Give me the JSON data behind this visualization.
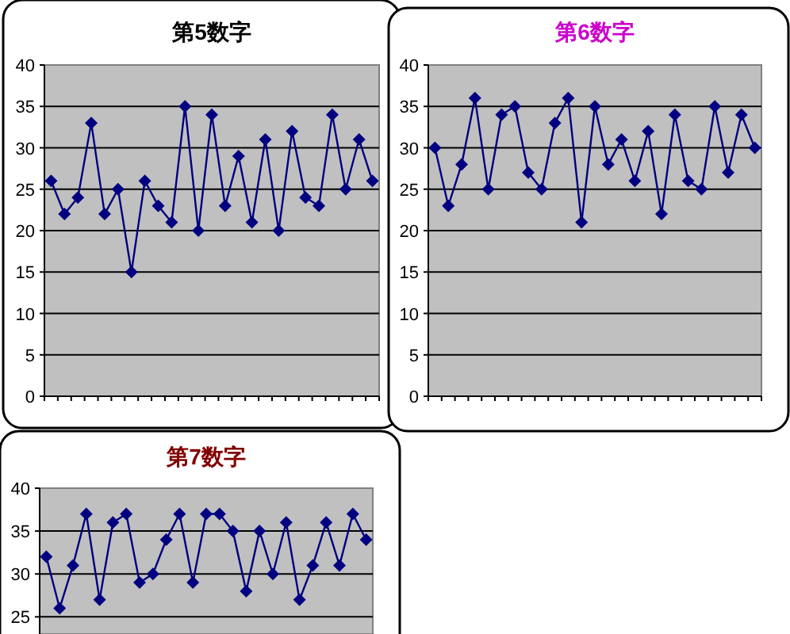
{
  "chart_data": [
    {
      "type": "line",
      "title": "第5数字",
      "categories": [
        null,
        null,
        null,
        null,
        null,
        null,
        null,
        null,
        null,
        null,
        null,
        null,
        null,
        null,
        null,
        null,
        null,
        null,
        null,
        null,
        null,
        null,
        null,
        null,
        null
      ],
      "series": [
        {
          "color": "#000080",
          "values": [
            26,
            22,
            24,
            33,
            22,
            25,
            15,
            26,
            23,
            21,
            35,
            20,
            34,
            23,
            29,
            21,
            31,
            20,
            32,
            24,
            23,
            34,
            25,
            31,
            26
          ]
        }
      ],
      "ylim": [
        0,
        40
      ],
      "yticks": [
        0,
        5,
        10,
        15,
        20,
        25,
        30,
        35,
        40
      ],
      "grid": "y",
      "marker": "diamond",
      "tick_labels": "y"
    },
    {
      "type": "line",
      "title": "第6数字",
      "categories": [
        null,
        null,
        null,
        null,
        null,
        null,
        null,
        null,
        null,
        null,
        null,
        null,
        null,
        null,
        null,
        null,
        null,
        null,
        null,
        null,
        null,
        null,
        null,
        null,
        null
      ],
      "series": [
        {
          "color": "#000080",
          "values": [
            30,
            23,
            28,
            36,
            25,
            34,
            35,
            27,
            25,
            33,
            36,
            21,
            35,
            28,
            31,
            26,
            32,
            22,
            34,
            26,
            25,
            35,
            27,
            34,
            30
          ]
        }
      ],
      "ylim": [
        0,
        40
      ],
      "yticks": [
        0,
        5,
        10,
        15,
        20,
        25,
        30,
        35,
        40
      ],
      "grid": "y",
      "marker": "diamond",
      "tick_labels": "y"
    },
    {
      "type": "line",
      "title": "第7数字",
      "categories": [
        null,
        null,
        null,
        null,
        null,
        null,
        null,
        null,
        null,
        null,
        null,
        null,
        null,
        null,
        null,
        null,
        null,
        null,
        null,
        null,
        null,
        null,
        null,
        null,
        null
      ],
      "series": [
        {
          "color": "#000080",
          "values": [
            32,
            26,
            31,
            37,
            27,
            36,
            37,
            29,
            30,
            34,
            37,
            29,
            37,
            37,
            35,
            28,
            35,
            30,
            36,
            27,
            31,
            36,
            31,
            37,
            34
          ]
        }
      ],
      "ylim": [
        23,
        40
      ],
      "yticks": [
        25,
        30,
        35,
        40
      ],
      "grid": "y",
      "marker": "diamond",
      "tick_labels": "y"
    }
  ]
}
